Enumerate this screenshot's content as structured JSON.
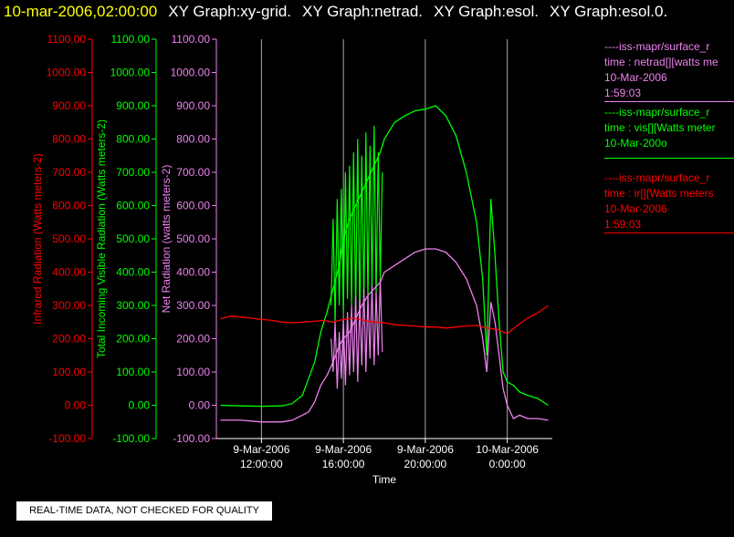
{
  "title": {
    "date": "10-mar-2006,02:00:00",
    "graphs": [
      "XY Graph:xy-grid.",
      "XY Graph:netrad.",
      "XY Graph:esol.",
      "XY Graph:esol.0."
    ]
  },
  "quality_notice": "REAL-TIME DATA, NOT CHECKED FOR QUALITY",
  "legend": [
    {
      "color": "#ee82ee",
      "lines": [
        "----iss-mapr/surface_r",
        "time : netrad[][watts me",
        "10-Mar-2006",
        "1:59:03"
      ]
    },
    {
      "color": "#00ff00",
      "lines": [
        "----iss-mapr/surface_r",
        "time : vis[][Watts meter",
        "10-Mar-200o"
      ]
    },
    {
      "color": "#ff0000",
      "lines": [
        "----iss-mapr/surface_r",
        "time : ir[][Watts meters",
        "10-Mar-2006",
        "1:59:03"
      ]
    }
  ],
  "colors": {
    "ir": "#ff0000",
    "vis": "#00ff00",
    "net": "#ee82ee",
    "axis": "#ffffff",
    "grid": "#aaaaaa"
  },
  "chart_data": {
    "type": "line",
    "xlabel": "Time",
    "x_ticks": [
      {
        "hour": 12,
        "date": "9-Mar-2006",
        "time": "12:00:00"
      },
      {
        "hour": 16,
        "date": "9-Mar-2006",
        "time": "16:00:00"
      },
      {
        "hour": 20,
        "date": "9-Mar-2006",
        "time": "20:00:00"
      },
      {
        "hour": 24,
        "date": "10-Mar-2006",
        "time": "0:00:00"
      }
    ],
    "xlim_hours": [
      9.8,
      26.2
    ],
    "ylim": [
      -100,
      1100
    ],
    "y_ticks": [
      "-100.00",
      "0.00",
      "100.00",
      "200.00",
      "300.00",
      "400.00",
      "500.00",
      "600.00",
      "700.00",
      "800.00",
      "900.00",
      "1000.00",
      "1100.00"
    ],
    "y_axes": [
      {
        "label": "Infrared Radiation (Watts meters-2)",
        "color": "#ff0000"
      },
      {
        "label": "Total Incoming Visible Radiation (Watts meters-2)",
        "color": "#00ff00"
      },
      {
        "label": "Net Radiation (watts meters-2)",
        "color": "#ee82ee"
      }
    ],
    "series": [
      {
        "key": "vis",
        "x": [
          10,
          11,
          12,
          13,
          13.5,
          14,
          14.3,
          14.6,
          14.9,
          15.2,
          15.5,
          15.8,
          16,
          16.3,
          16.6,
          16.9,
          17.2,
          17.5,
          17.8,
          18,
          18.5,
          19,
          19.5,
          20,
          20.5,
          21,
          21.5,
          22,
          22.5,
          22.8,
          23,
          23.2,
          23.4,
          23.6,
          23.8,
          24,
          24.3,
          24.6,
          25,
          25.5,
          26
        ],
        "y": [
          0,
          -2,
          -3,
          -2,
          5,
          30,
          80,
          130,
          220,
          280,
          350,
          420,
          500,
          560,
          600,
          640,
          680,
          720,
          760,
          800,
          850,
          870,
          885,
          890,
          900,
          870,
          810,
          700,
          550,
          380,
          150,
          620,
          450,
          250,
          100,
          70,
          60,
          40,
          30,
          20,
          0
        ]
      },
      {
        "key": "vis_spikes",
        "x": [
          15.4,
          15.5,
          15.6,
          15.7,
          15.8,
          15.9,
          16,
          16.1,
          16.2,
          16.3,
          16.4,
          16.5,
          16.6,
          16.7,
          16.8,
          16.9,
          17,
          17.1,
          17.2,
          17.3,
          17.4,
          17.5,
          17.6,
          17.7,
          17.8,
          17.9
        ],
        "y": [
          300,
          560,
          250,
          620,
          300,
          650,
          280,
          700,
          320,
          720,
          300,
          760,
          280,
          800,
          260,
          750,
          300,
          820,
          320,
          780,
          350,
          840,
          330,
          760,
          380,
          700
        ]
      },
      {
        "key": "net",
        "x": [
          10,
          11,
          12,
          13,
          13.5,
          14,
          14.3,
          14.6,
          14.9,
          15.2,
          15.5,
          15.8,
          16,
          16.3,
          16.6,
          16.9,
          17.2,
          17.5,
          17.8,
          18,
          18.5,
          19,
          19.5,
          20,
          20.5,
          21,
          21.5,
          22,
          22.5,
          22.8,
          23,
          23.2,
          23.4,
          23.6,
          23.8,
          24,
          24.3,
          24.6,
          25,
          25.5,
          26
        ],
        "y": [
          -45,
          -45,
          -50,
          -50,
          -45,
          -30,
          -20,
          10,
          60,
          90,
          130,
          180,
          200,
          220,
          260,
          300,
          330,
          350,
          370,
          400,
          420,
          440,
          460,
          470,
          470,
          460,
          430,
          380,
          300,
          200,
          100,
          310,
          250,
          150,
          50,
          0,
          -40,
          -30,
          -40,
          -40,
          -45
        ]
      },
      {
        "key": "net_spikes",
        "x": [
          15.4,
          15.5,
          15.6,
          15.7,
          15.8,
          15.9,
          16,
          16.1,
          16.2,
          16.3,
          16.4,
          16.5,
          16.6,
          16.7,
          16.8,
          16.9,
          17,
          17.1,
          17.2,
          17.3,
          17.4,
          17.5,
          17.6,
          17.7,
          17.8,
          17.9
        ],
        "y": [
          200,
          100,
          250,
          50,
          220,
          80,
          260,
          60,
          280,
          90,
          300,
          100,
          330,
          70,
          320,
          120,
          350,
          100,
          330,
          140,
          360,
          120,
          340,
          150,
          380,
          160
        ]
      },
      {
        "key": "ir",
        "x": [
          10,
          10.5,
          11,
          11.5,
          12,
          12.5,
          13,
          13.5,
          14,
          14.5,
          15,
          15.5,
          16,
          16.5,
          17,
          17.5,
          18,
          18.5,
          19,
          19.5,
          20,
          20.5,
          21,
          21.5,
          22,
          22.5,
          23,
          23.5,
          24,
          24.5,
          25,
          25.5,
          26
        ],
        "y": [
          260,
          268,
          265,
          262,
          258,
          255,
          250,
          248,
          250,
          252,
          255,
          250,
          258,
          262,
          255,
          250,
          248,
          242,
          240,
          238,
          235,
          235,
          232,
          235,
          238,
          240,
          232,
          228,
          215,
          240,
          262,
          278,
          300
        ]
      }
    ]
  }
}
